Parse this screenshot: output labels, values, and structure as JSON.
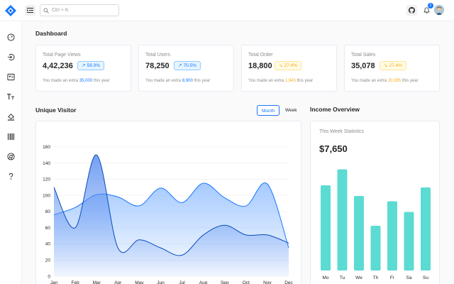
{
  "header": {
    "search_placeholder": "Ctrl + K",
    "notification_count": "2",
    "icons": {
      "logo": "logo-icon",
      "menu": "menu-fold-icon",
      "search": "search-icon",
      "github": "github-icon",
      "bell": "bell-icon"
    }
  },
  "sidebar": {
    "items": [
      {
        "icon": "dashboard-icon"
      },
      {
        "icon": "login-icon"
      },
      {
        "icon": "profile-icon"
      },
      {
        "icon": "typography-icon"
      },
      {
        "icon": "color-icon"
      },
      {
        "icon": "barcode-icon"
      },
      {
        "icon": "chrome-icon"
      },
      {
        "icon": "question-icon"
      }
    ]
  },
  "page": {
    "title": "Dashboard"
  },
  "stats": [
    {
      "label": "Total Page Views",
      "value": "4,42,236",
      "percent": "59.3%",
      "trend": "up",
      "note_prefix": "You made an extra ",
      "extra": "35,000",
      "note_suffix": " this year"
    },
    {
      "label": "Total Users",
      "value": "78,250",
      "percent": "70.5%",
      "trend": "up",
      "note_prefix": "You made an extra ",
      "extra": "8,900",
      "note_suffix": " this year"
    },
    {
      "label": "Total Order",
      "value": "18,800",
      "percent": "27.4%",
      "trend": "down",
      "note_prefix": "You made an extra ",
      "extra": "1,943",
      "note_suffix": " this year"
    },
    {
      "label": "Total Sales",
      "value": "35,078",
      "percent": "27.4%",
      "trend": "down",
      "note_prefix": "You made an extra ",
      "extra": "20,395",
      "note_suffix": " this year"
    }
  ],
  "visitor": {
    "title": "Unique Visitor",
    "toggle_month": "Month",
    "toggle_week": "Week"
  },
  "income": {
    "title": "Income Overview",
    "subtitle": "This Week Statistics",
    "amount": "$7,650"
  },
  "colors": {
    "primary": "#1677ff",
    "area_line_dark": "#0a4dbb",
    "area_fill": "#9cc4ff",
    "bar": "#5cdbd3",
    "warning": "#faad14"
  },
  "chart_data": [
    {
      "type": "area",
      "title": "",
      "categories": [
        "Jan",
        "Feb",
        "Mar",
        "Apr",
        "May",
        "Jun",
        "Jul",
        "Aug",
        "Sep",
        "Oct",
        "Nov",
        "Dec"
      ],
      "ylim": [
        0,
        180
      ],
      "yticks": [
        0,
        20,
        40,
        60,
        80,
        100,
        120,
        140,
        160
      ],
      "grid": true,
      "series": [
        {
          "values": [
            76,
            85,
            101,
            98,
            87,
            109,
            91,
            115,
            97,
            87,
            114,
            35
          ]
        },
        {
          "values": [
            110,
            60,
            150,
            35,
            45,
            35,
            26,
            51,
            63,
            51,
            51,
            41
          ]
        }
      ]
    },
    {
      "type": "bar",
      "title": "",
      "categories": [
        "Mo",
        "Tu",
        "We",
        "Th",
        "Fr",
        "Sa",
        "Su"
      ],
      "values": [
        80,
        95,
        70,
        42,
        65,
        55,
        78
      ],
      "ylim": [
        0,
        100
      ]
    }
  ]
}
